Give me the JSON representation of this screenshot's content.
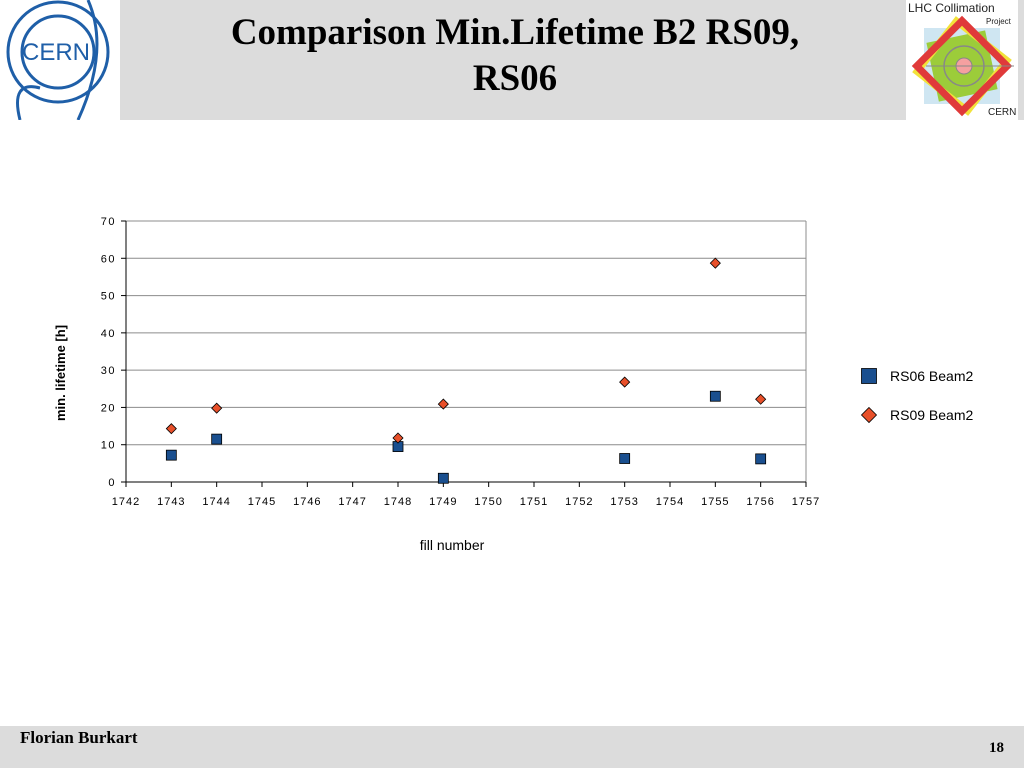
{
  "slide": {
    "title_line1": "Comparison Min.Lifetime B2 RS09,",
    "title_line2": "RS06",
    "cern_logo_text": "CERN",
    "lhc_logo": {
      "line1": "LHC Collimation",
      "line2": "Project",
      "line3": "CERN"
    },
    "author": "Florian Burkart",
    "page_number": "18"
  },
  "chart_data": {
    "type": "scatter",
    "title": "",
    "xlabel": "fill number",
    "ylabel": "min. lifetime [h]",
    "xlim": [
      1742,
      1757
    ],
    "ylim": [
      0,
      70
    ],
    "x_ticks": [
      "1742",
      "1743",
      "1744",
      "1745",
      "1746",
      "1747",
      "1748",
      "1749",
      "1750",
      "1751",
      "1752",
      "1753",
      "1754",
      "1755",
      "1756",
      "1757"
    ],
    "y_ticks": [
      "0",
      "10",
      "20",
      "30",
      "40",
      "50",
      "60",
      "70"
    ],
    "grid": "horizontal",
    "legend_position": "right",
    "series": [
      {
        "name": "RS06 Beam2",
        "marker": "square",
        "color": "#1a4f8f",
        "points": [
          {
            "x": 1743,
            "y": 7.2
          },
          {
            "x": 1744,
            "y": 11.5
          },
          {
            "x": 1748,
            "y": 9.5
          },
          {
            "x": 1749,
            "y": 1.0
          },
          {
            "x": 1753,
            "y": 6.3
          },
          {
            "x": 1755,
            "y": 23.0
          },
          {
            "x": 1756,
            "y": 6.2
          }
        ]
      },
      {
        "name": "RS09 Beam2",
        "marker": "diamond",
        "color": "#e8502a",
        "points": [
          {
            "x": 1743,
            "y": 14.3
          },
          {
            "x": 1744,
            "y": 19.8
          },
          {
            "x": 1748,
            "y": 11.8
          },
          {
            "x": 1749,
            "y": 20.9
          },
          {
            "x": 1753,
            "y": 26.8
          },
          {
            "x": 1755,
            "y": 58.7
          },
          {
            "x": 1756,
            "y": 22.2
          }
        ]
      }
    ]
  }
}
